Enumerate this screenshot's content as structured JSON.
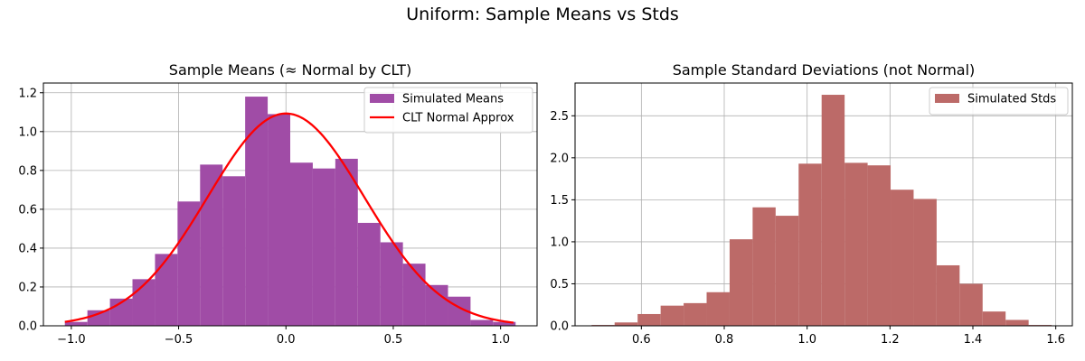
{
  "figure": {
    "suptitle": "Uniform: Sample Means vs Stds"
  },
  "chart_data": [
    {
      "type": "bar",
      "title": "Sample Means (≈ Normal by CLT)",
      "xlabel": "",
      "ylabel": "",
      "xlim": [
        -1.13,
        1.17
      ],
      "ylim": [
        0,
        1.25
      ],
      "xticks": [
        -1.0,
        -0.5,
        0.0,
        0.5,
        1.0
      ],
      "xtick_labels": [
        "−1.0",
        "−0.5",
        "0.0",
        "0.5",
        "1.0"
      ],
      "yticks": [
        0.0,
        0.2,
        0.4,
        0.6,
        0.8,
        1.0,
        1.2
      ],
      "ytick_labels": [
        "0.0",
        "0.2",
        "0.4",
        "0.6",
        "0.8",
        "1.0",
        "1.2"
      ],
      "grid": true,
      "legend_position": "top-right",
      "bar_color": "#a04ca6",
      "bin_edges": [
        -1.03,
        -0.925,
        -0.82,
        -0.715,
        -0.61,
        -0.505,
        -0.4,
        -0.295,
        -0.19,
        -0.085,
        0.02,
        0.125,
        0.23,
        0.335,
        0.44,
        0.545,
        0.65,
        0.755,
        0.86,
        0.965,
        1.07
      ],
      "series": [
        {
          "name": "Simulated Means",
          "kind": "histogram",
          "values": [
            0.02,
            0.08,
            0.14,
            0.24,
            0.37,
            0.64,
            0.83,
            0.77,
            1.18,
            1.09,
            0.84,
            0.81,
            0.86,
            0.53,
            0.43,
            0.32,
            0.21,
            0.15,
            0.03,
            0.02
          ]
        },
        {
          "name": "CLT Normal Approx",
          "kind": "line",
          "color": "#ff0000",
          "mean": 0.0,
          "std": 0.365,
          "x_range": [
            -1.03,
            1.06
          ]
        }
      ]
    },
    {
      "type": "bar",
      "title": "Sample Standard Deviations (not Normal)",
      "xlabel": "",
      "ylabel": "",
      "xlim": [
        0.44,
        1.64
      ],
      "ylim": [
        0,
        2.89
      ],
      "xticks": [
        0.6,
        0.8,
        1.0,
        1.2,
        1.4,
        1.6
      ],
      "xtick_labels": [
        "0.6",
        "0.8",
        "1.0",
        "1.2",
        "1.4",
        "1.6"
      ],
      "yticks": [
        0.0,
        0.5,
        1.0,
        1.5,
        2.0,
        2.5
      ],
      "ytick_labels": [
        "0.0",
        "0.5",
        "1.0",
        "1.5",
        "2.0",
        "2.5"
      ],
      "grid": true,
      "legend_position": "top-right",
      "bar_color": "#bc6a68",
      "bin_edges": [
        0.48,
        0.5355,
        0.591,
        0.6465,
        0.702,
        0.7575,
        0.813,
        0.8685,
        0.924,
        0.9795,
        1.035,
        1.0905,
        1.146,
        1.2015,
        1.257,
        1.3125,
        1.368,
        1.4235,
        1.479,
        1.5345,
        1.59
      ],
      "series": [
        {
          "name": "Simulated Stds",
          "kind": "histogram",
          "values": [
            0.01,
            0.04,
            0.14,
            0.24,
            0.27,
            0.4,
            1.03,
            1.41,
            1.31,
            1.93,
            2.75,
            1.94,
            1.91,
            1.62,
            1.51,
            0.72,
            0.5,
            0.17,
            0.07,
            0.01
          ]
        }
      ]
    }
  ]
}
